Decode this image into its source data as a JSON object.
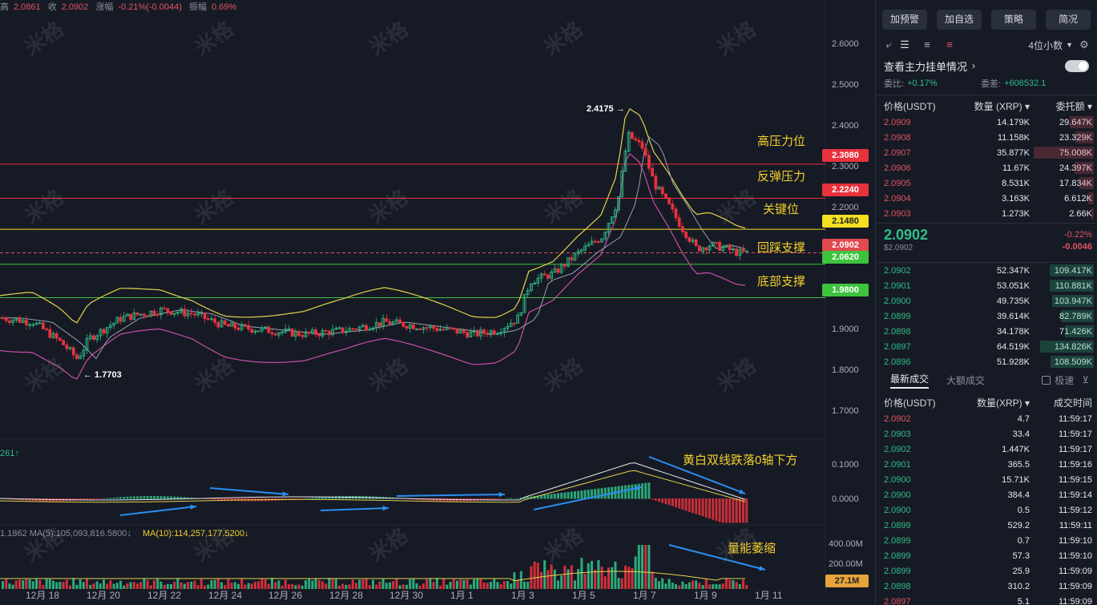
{
  "topbar": {
    "items": [
      {
        "label": "",
        "value": "2.0861"
      },
      {
        "label": "收",
        "value": "2.0902"
      },
      {
        "label": "涨幅",
        "value": "-0.21%(-0.0044)"
      },
      {
        "label": "振幅",
        "value": "0.69%"
      }
    ],
    "prefix": "高"
  },
  "watermark": "米格",
  "chart": {
    "annotations": [
      "高压力位",
      "反弹压力",
      "关键位",
      "回踩支撑",
      "底部支撑",
      "黄白双线跌落0轴下方",
      "量能萎缩"
    ],
    "price_tags": [
      {
        "value": "2.3080",
        "color": "#e8323c"
      },
      {
        "value": "2.2240",
        "color": "#e8323c"
      },
      {
        "value": "2.1480",
        "color": "#f2e021"
      },
      {
        "value": "2.0902",
        "color": "#e04a4e"
      },
      {
        "value": "2.0620",
        "color": "#3ec33e"
      },
      {
        "value": "1.9800",
        "color": "#3ec33e"
      }
    ],
    "high_label": "2.4175 →",
    "low_label": "← 1.7703",
    "macd_label": "261↑",
    "vol_labels": {
      "ma5": "1.1862  MA(5):105,093,816.5800↓",
      "ma10": "MA(10):114,257,177.5200↓"
    },
    "vol_axis": [
      "400.00M",
      "200.00M"
    ],
    "vol_tag": "27.1M",
    "macd_axis": [
      "0.1000",
      "0.0000"
    ]
  },
  "chart_data": {
    "type": "candlestick",
    "y_ticks": [
      "2.6000",
      "2.5000",
      "2.4000",
      "2.3000",
      "2.2000",
      "2.1000",
      "2.0000",
      "1.9000",
      "1.8000",
      "1.7000"
    ],
    "x_ticks": [
      "12月 18",
      "12月 20",
      "12月 22",
      "12月 24",
      "12月 26",
      "12月 28",
      "12月 30",
      "1月 1",
      "1月 3",
      "1月 5",
      "1月 7",
      "1月 9",
      "1月 11"
    ],
    "levels": [
      2.308,
      2.224,
      2.148,
      2.062,
      1.98
    ],
    "last_price": 2.0902,
    "high": 2.4175,
    "low": 1.7703,
    "ylim": [
      1.66,
      2.66
    ]
  },
  "panel": {
    "buttons": [
      "加预警",
      "加自选",
      "策略",
      "简况"
    ],
    "decimals": "4位小数",
    "depth_title": "查看主力挂单情况",
    "ratio": {
      "label": "委比:",
      "value": "+0.17%",
      "diff_label": "委差:",
      "diff_value": "+606532.1"
    },
    "ob_headers": [
      "价格(USDT)",
      "数量 (XRP) ▾",
      "委托额 ▾"
    ],
    "asks": [
      [
        "2.0909",
        "14.179K",
        "29.647K"
      ],
      [
        "2.0908",
        "11.158K",
        "23.329K"
      ],
      [
        "2.0907",
        "35.877K",
        "75.008K"
      ],
      [
        "2.0906",
        "11.67K",
        "24.397K"
      ],
      [
        "2.0905",
        "8.531K",
        "17.834K"
      ],
      [
        "2.0904",
        "3.163K",
        "6.612K"
      ],
      [
        "2.0903",
        "1.273K",
        "2.66K"
      ]
    ],
    "last": {
      "price": "2.0902",
      "usd": "$2.0902",
      "pct": "-0.22%",
      "chg": "-0.0046"
    },
    "bids": [
      [
        "2.0902",
        "52.347K",
        "109.417K"
      ],
      [
        "2.0901",
        "53.051K",
        "110.881K"
      ],
      [
        "2.0900",
        "49.735K",
        "103.947K"
      ],
      [
        "2.0899",
        "39.614K",
        "82.789K"
      ],
      [
        "2.0898",
        "34.178K",
        "71.426K"
      ],
      [
        "2.0897",
        "64.519K",
        "134.826K"
      ],
      [
        "2.0896",
        "51.928K",
        "108.509K"
      ]
    ],
    "tabs": [
      "最新成交",
      "大额成交",
      "极速"
    ],
    "trade_headers": [
      "价格(USDT)",
      "数量(XRP) ▾",
      "成交时间"
    ],
    "trades": [
      [
        "2.0902",
        "4.7",
        "11:59:17",
        "red"
      ],
      [
        "2.0903",
        "33.4",
        "11:59:17",
        "green"
      ],
      [
        "2.0902",
        "1.447K",
        "11:59:17",
        "green"
      ],
      [
        "2.0901",
        "365.5",
        "11:59:16",
        "green"
      ],
      [
        "2.0900",
        "15.71K",
        "11:59:15",
        "green"
      ],
      [
        "2.0900",
        "384.4",
        "11:59:14",
        "green"
      ],
      [
        "2.0900",
        "0.5",
        "11:59:12",
        "green"
      ],
      [
        "2.0899",
        "529.2",
        "11:59:11",
        "green"
      ],
      [
        "2.0899",
        "0.7",
        "11:59:10",
        "green"
      ],
      [
        "2.0899",
        "57.3",
        "11:59:10",
        "green"
      ],
      [
        "2.0899",
        "25.9",
        "11:59:09",
        "green"
      ],
      [
        "2.0898",
        "310.2",
        "11:59:09",
        "green"
      ],
      [
        "2.0897",
        "5.1",
        "11:59:09",
        "red"
      ]
    ]
  }
}
